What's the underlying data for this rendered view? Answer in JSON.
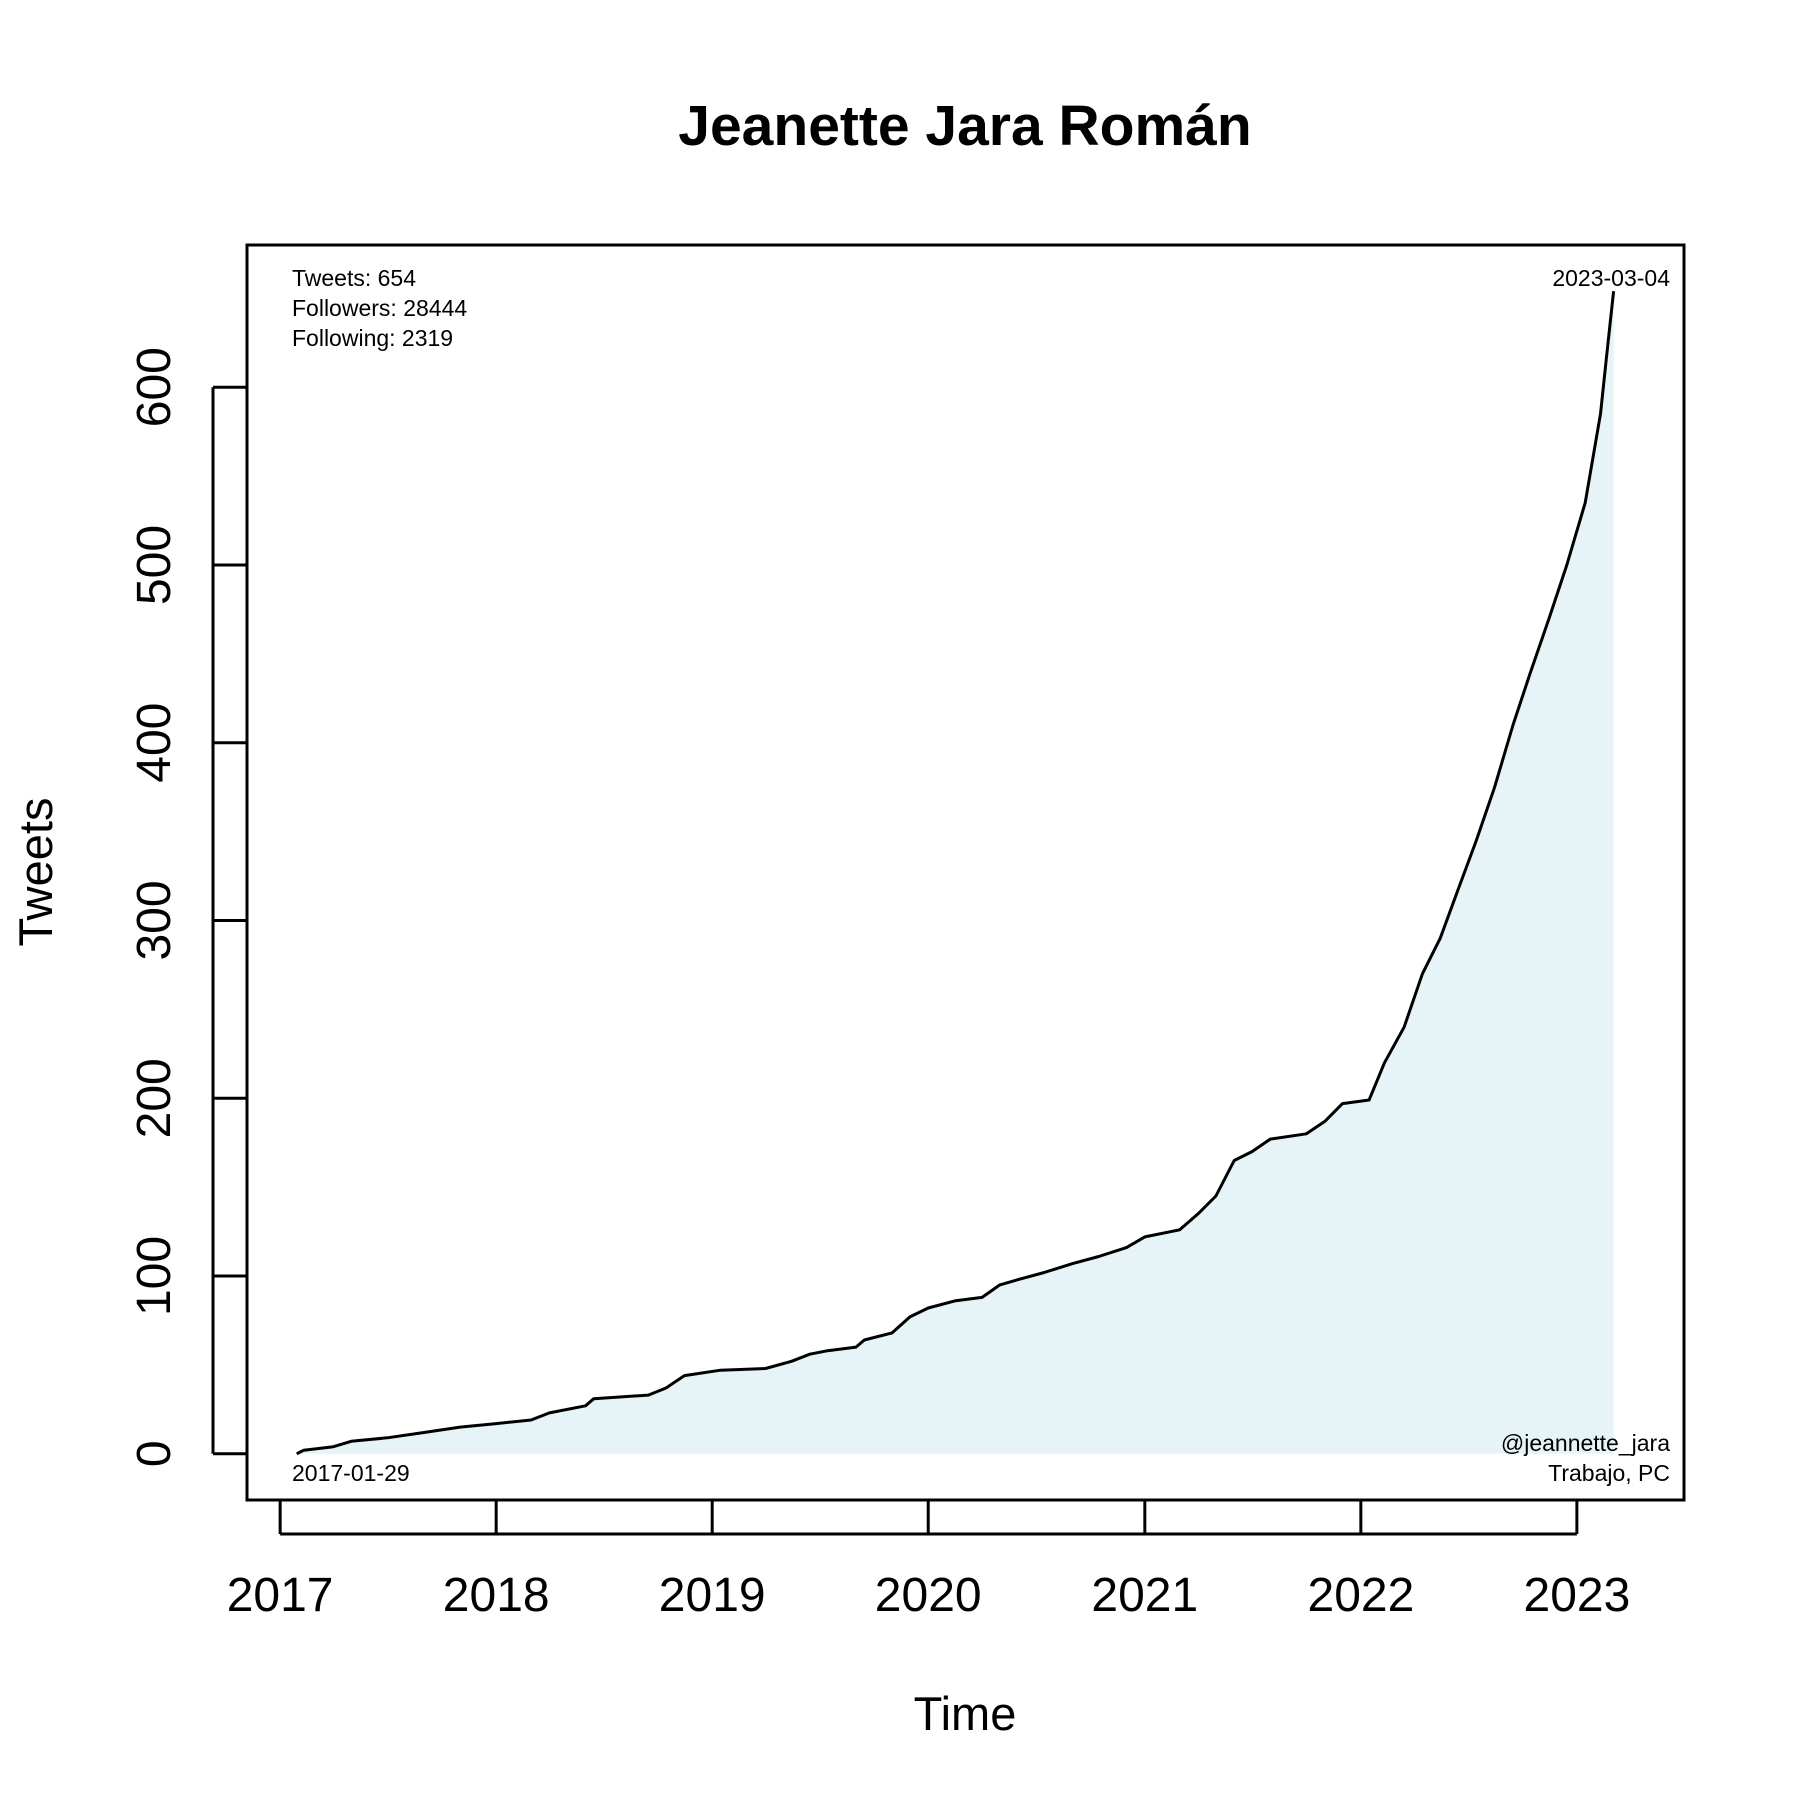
{
  "chart_data": {
    "type": "area",
    "title": "Jeanette Jara Román",
    "xlabel": "Time",
    "ylabel": "Tweets",
    "x_ticks": [
      "2017",
      "2018",
      "2019",
      "2020",
      "2021",
      "2022",
      "2023"
    ],
    "y_ticks": [
      "0",
      "100",
      "200",
      "300",
      "400",
      "500",
      "600"
    ],
    "xlim": [
      "2016-11-06",
      "2023-07-01"
    ],
    "ylim": [
      -26,
      680
    ],
    "line_color": "#000000",
    "fill_color": "#e6f4f8",
    "start_label": "2017-01-29",
    "end_label": "2023-03-04",
    "stats": {
      "tweets": "Tweets: 654",
      "followers": "Followers: 28444",
      "following": "Following: 2319"
    },
    "handle": "@jeannette_jara",
    "affiliation": "Trabajo, PC",
    "series": [
      {
        "points": [
          [
            "2017-01-29",
            0
          ],
          [
            "2017-02-10",
            2
          ],
          [
            "2017-04-01",
            4
          ],
          [
            "2017-05-01",
            7
          ],
          [
            "2017-07-01",
            9
          ],
          [
            "2017-09-01",
            12
          ],
          [
            "2017-11-01",
            15
          ],
          [
            "2018-01-01",
            17
          ],
          [
            "2018-03-01",
            19
          ],
          [
            "2018-04-01",
            23
          ],
          [
            "2018-06-01",
            27
          ],
          [
            "2018-06-15",
            31
          ],
          [
            "2018-08-01",
            32
          ],
          [
            "2018-09-15",
            33
          ],
          [
            "2018-10-15",
            37
          ],
          [
            "2018-11-15",
            44
          ],
          [
            "2019-01-15",
            47
          ],
          [
            "2019-04-01",
            48
          ],
          [
            "2019-05-15",
            52
          ],
          [
            "2019-06-15",
            56
          ],
          [
            "2019-07-15",
            58
          ],
          [
            "2019-09-01",
            60
          ],
          [
            "2019-09-15",
            64
          ],
          [
            "2019-11-01",
            68
          ],
          [
            "2019-12-01",
            77
          ],
          [
            "2020-01-01",
            82
          ],
          [
            "2020-02-15",
            86
          ],
          [
            "2020-04-01",
            88
          ],
          [
            "2020-05-01",
            95
          ],
          [
            "2020-06-01",
            98
          ],
          [
            "2020-07-15",
            102
          ],
          [
            "2020-09-01",
            107
          ],
          [
            "2020-10-15",
            111
          ],
          [
            "2020-12-01",
            116
          ],
          [
            "2021-01-01",
            122
          ],
          [
            "2021-03-01",
            126
          ],
          [
            "2021-04-01",
            135
          ],
          [
            "2021-05-01",
            145
          ],
          [
            "2021-06-01",
            165
          ],
          [
            "2021-07-01",
            170
          ],
          [
            "2021-08-01",
            177
          ],
          [
            "2021-10-01",
            180
          ],
          [
            "2021-11-01",
            187
          ],
          [
            "2021-12-01",
            197
          ],
          [
            "2022-01-15",
            199
          ],
          [
            "2022-02-10",
            220
          ],
          [
            "2022-03-15",
            240
          ],
          [
            "2022-04-15",
            270
          ],
          [
            "2022-05-15",
            290
          ],
          [
            "2022-06-15",
            318
          ],
          [
            "2022-07-15",
            345
          ],
          [
            "2022-08-15",
            375
          ],
          [
            "2022-09-15",
            410
          ],
          [
            "2022-10-15",
            440
          ],
          [
            "2022-11-15",
            470
          ],
          [
            "2022-12-15",
            500
          ],
          [
            "2023-01-15",
            535
          ],
          [
            "2023-02-10",
            585
          ],
          [
            "2023-02-20",
            617
          ],
          [
            "2023-03-04",
            654
          ]
        ]
      }
    ]
  }
}
